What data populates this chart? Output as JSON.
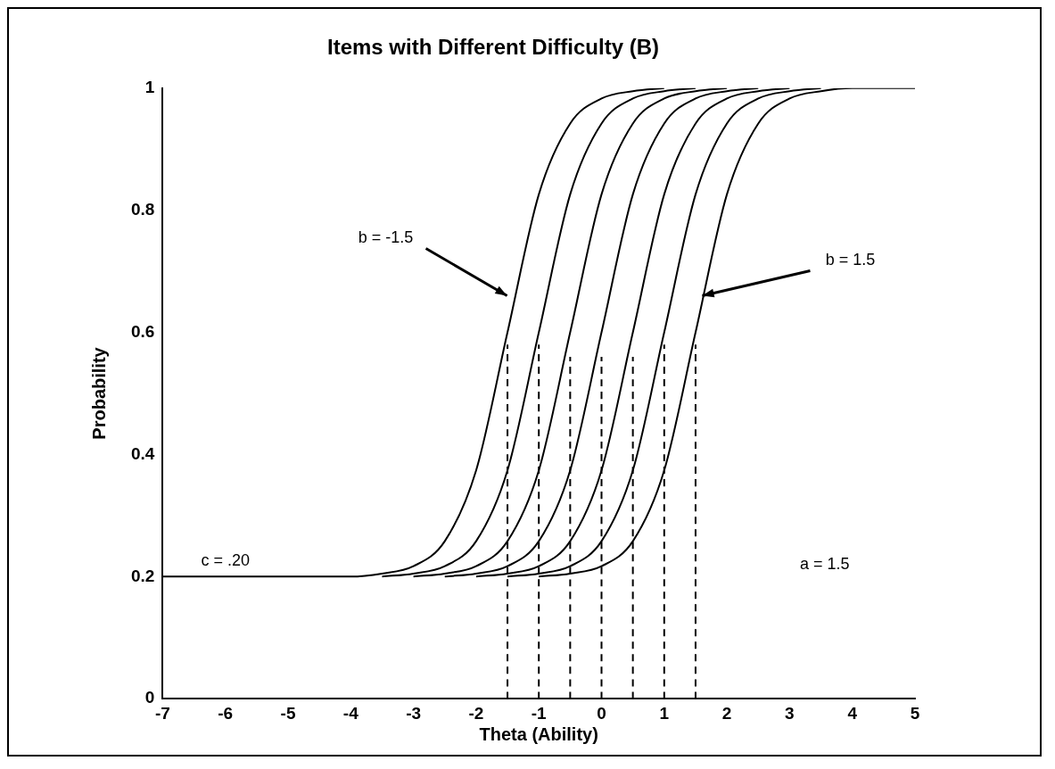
{
  "chart_data": {
    "type": "line",
    "title": "Items with Different Difficulty (B)",
    "xlabel": "Theta (Ability)",
    "ylabel": "Probability",
    "xlim": [
      -7,
      5
    ],
    "xticks": [
      -7,
      -6,
      -5,
      -4,
      -3,
      -2,
      -1,
      0,
      1,
      2,
      3,
      4,
      5
    ],
    "ylim": [
      0,
      1
    ],
    "yticks": [
      0,
      0.2,
      0.4,
      0.6,
      0.8,
      1
    ],
    "grid": false,
    "legend": false,
    "marker": "none",
    "annotations": [
      {
        "text": "b = -1.5",
        "x": -1.45,
        "y": 0.66
      },
      {
        "text": "b = 1.5",
        "x": 1.55,
        "y": 0.66
      },
      {
        "text": "c = .20",
        "x": -6,
        "y": 0.2
      },
      "a = 1.5"
    ],
    "series": [
      {
        "color": "#000000",
        "x": [
          -7,
          -4,
          -3.5,
          -3,
          -2.5,
          -2,
          -1.5,
          -1,
          -0.5,
          0,
          0.5,
          1
        ],
        "values": [
          0.2,
          0.2,
          0.205,
          0.217,
          0.258,
          0.374,
          0.6,
          0.826,
          0.942,
          0.983,
          0.995,
          1
        ]
      },
      {
        "color": "#000000",
        "x": [
          -3.5,
          -3,
          -2.5,
          -2,
          -1.5,
          -1,
          -0.5,
          0,
          0.5,
          1,
          1.5
        ],
        "values": [
          0.2,
          0.205,
          0.217,
          0.258,
          0.374,
          0.6,
          0.826,
          0.942,
          0.983,
          0.995,
          1
        ]
      },
      {
        "color": "#000000",
        "x": [
          -3,
          -2.5,
          -2,
          -1.5,
          -1,
          -0.5,
          0,
          0.5,
          1,
          1.5,
          2
        ],
        "values": [
          0.2,
          0.205,
          0.217,
          0.258,
          0.374,
          0.6,
          0.826,
          0.942,
          0.983,
          0.995,
          1
        ]
      },
      {
        "color": "#000000",
        "x": [
          -2.5,
          -2,
          -1.5,
          -1,
          -0.5,
          0,
          0.5,
          1,
          1.5,
          2,
          2.5
        ],
        "values": [
          0.2,
          0.205,
          0.217,
          0.258,
          0.374,
          0.6,
          0.826,
          0.942,
          0.983,
          0.995,
          1
        ]
      },
      {
        "color": "#000000",
        "x": [
          -2,
          -1.5,
          -1,
          -0.5,
          0,
          0.5,
          1,
          1.5,
          2,
          2.5,
          3
        ],
        "values": [
          0.2,
          0.205,
          0.217,
          0.258,
          0.374,
          0.6,
          0.826,
          0.942,
          0.983,
          0.995,
          1
        ]
      },
      {
        "color": "#000000",
        "x": [
          -1.5,
          -1,
          -0.5,
          0,
          0.5,
          1,
          1.5,
          2,
          2.5,
          3,
          3.5
        ],
        "values": [
          0.2,
          0.205,
          0.217,
          0.258,
          0.374,
          0.6,
          0.826,
          0.942,
          0.983,
          0.995,
          1
        ]
      },
      {
        "color": "#000000",
        "x": [
          -1,
          -0.5,
          0,
          0.5,
          1,
          1.5,
          2,
          2.5,
          3,
          3.5,
          4,
          5
        ],
        "values": [
          0.2,
          0.205,
          0.217,
          0.258,
          0.374,
          0.6,
          0.826,
          0.942,
          0.983,
          0.995,
          1,
          1
        ]
      },
      {
        "color": "#000000",
        "line_style": "dashed",
        "x": [
          -1.5,
          -1.5
        ],
        "values": [
          0,
          0.58
        ]
      },
      {
        "color": "#000000",
        "line_style": "dashed",
        "x": [
          -1,
          -1
        ],
        "values": [
          0,
          0.58
        ]
      },
      {
        "color": "#000000",
        "line_style": "dashed",
        "x": [
          -0.5,
          -0.5
        ],
        "values": [
          0,
          0.56
        ]
      },
      {
        "color": "#000000",
        "line_style": "dashed",
        "x": [
          0,
          0
        ],
        "values": [
          0,
          0.56
        ]
      },
      {
        "color": "#000000",
        "line_style": "dashed",
        "x": [
          0.5,
          0.5
        ],
        "values": [
          0,
          0.56
        ]
      },
      {
        "color": "#000000",
        "line_style": "dashed",
        "x": [
          1,
          1
        ],
        "values": [
          0,
          0.58
        ]
      },
      {
        "color": "#000000",
        "line_style": "dashed",
        "x": [
          1.5,
          1.5
        ],
        "values": [
          0,
          0.58
        ]
      }
    ]
  }
}
